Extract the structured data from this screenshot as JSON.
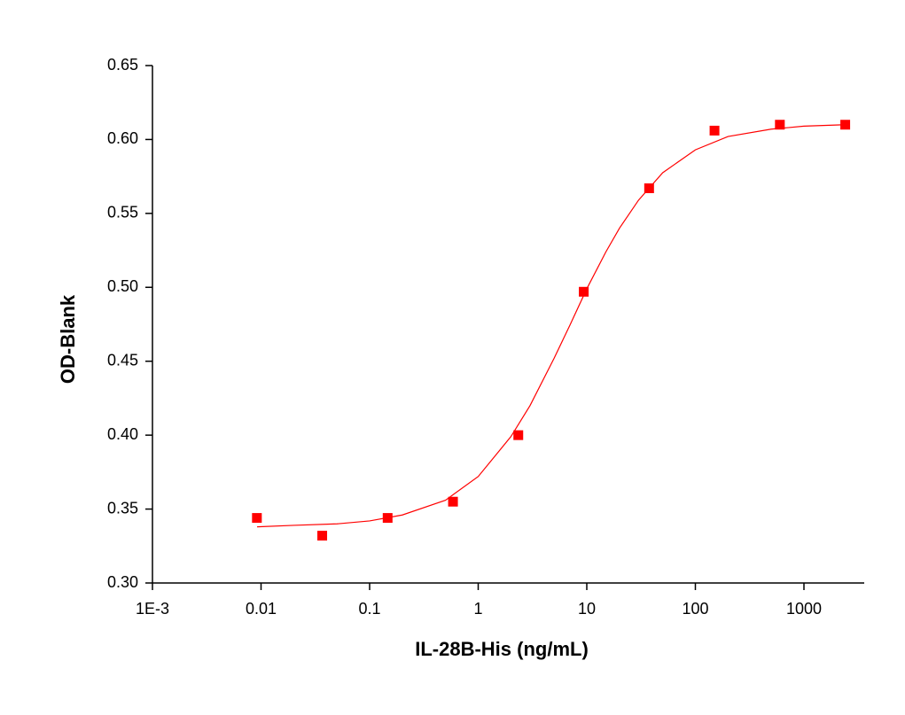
{
  "chart_data": {
    "type": "scatter",
    "x_label": "IL-28B-His (ng/mL)",
    "y_label": "OD-Blank",
    "xscale": "log",
    "xlim": [
      0.001,
      3590
    ],
    "ylim": [
      0.3,
      0.65
    ],
    "xticks": [
      {
        "value": 0.001,
        "label": "1E-3"
      },
      0.01,
      0.1,
      1,
      10,
      100,
      1000
    ],
    "yticks": [
      {
        "value": 0.3,
        "label": "0.30"
      },
      0.35,
      {
        "value": 0.4,
        "label": "0.40"
      },
      0.45,
      {
        "value": 0.5,
        "label": "0.50"
      },
      0.55,
      {
        "value": 0.6,
        "label": "0.60"
      },
      0.65
    ],
    "series": [
      {
        "style": "markers",
        "color": "#ff0000",
        "x": [
          0.00916,
          0.0366,
          0.1465,
          0.586,
          2.34,
          9.375,
          37.5,
          150,
          600,
          2400
        ],
        "values": [
          0.344,
          0.332,
          0.344,
          0.355,
          0.4,
          0.497,
          0.567,
          0.606,
          0.61,
          0.61
        ]
      },
      {
        "style": "line",
        "color": "#ff0000",
        "x": [
          0.0092,
          0.02,
          0.05,
          0.1,
          0.2,
          0.5,
          1,
          2,
          3,
          5,
          7,
          10,
          15,
          20,
          30,
          50,
          100,
          200,
          500,
          1000,
          2400
        ],
        "values": [
          0.338,
          0.339,
          0.34,
          0.342,
          0.346,
          0.356,
          0.372,
          0.399,
          0.42,
          0.452,
          0.4745,
          0.499,
          0.524,
          0.54,
          0.559,
          0.5775,
          0.593,
          0.602,
          0.607,
          0.609,
          0.61
        ]
      }
    ]
  }
}
